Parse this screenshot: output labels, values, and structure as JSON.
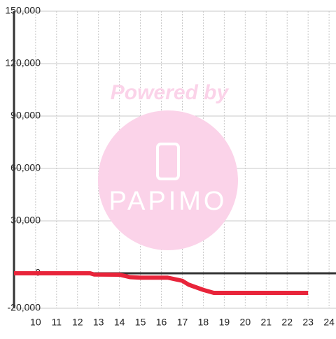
{
  "chart_data": {
    "type": "line",
    "watermark": {
      "text": "Powered by",
      "logo": "PAPIMO"
    },
    "x": [
      8.97,
      12.6,
      12.8,
      14.0,
      14.5,
      15.0,
      16.3,
      17.0,
      17.3,
      18.0,
      18.5,
      23.0
    ],
    "series": [
      {
        "color": "#e8243a",
        "values": [
          0,
          0,
          -700,
          -800,
          -2200,
          -2500,
          -2500,
          -4300,
          -6500,
          -9500,
          -11200,
          -11200
        ]
      }
    ],
    "xlim": [
      8.97,
      24.33
    ],
    "xticks": [
      10,
      11,
      12,
      13,
      14,
      15,
      16,
      17,
      18,
      19,
      20,
      21,
      22,
      23,
      24
    ],
    "ylim": [
      -20000,
      150000
    ],
    "yticks": [
      {
        "value": -20000,
        "label": "-20,000"
      },
      0,
      {
        "value": 30000,
        "label": "30,000"
      },
      {
        "value": 60000,
        "label": "60,000"
      },
      {
        "value": 90000,
        "label": "90,000"
      },
      {
        "value": 120000,
        "label": "120,000"
      },
      {
        "value": 150000,
        "label": "150,000"
      }
    ],
    "grid": true
  }
}
